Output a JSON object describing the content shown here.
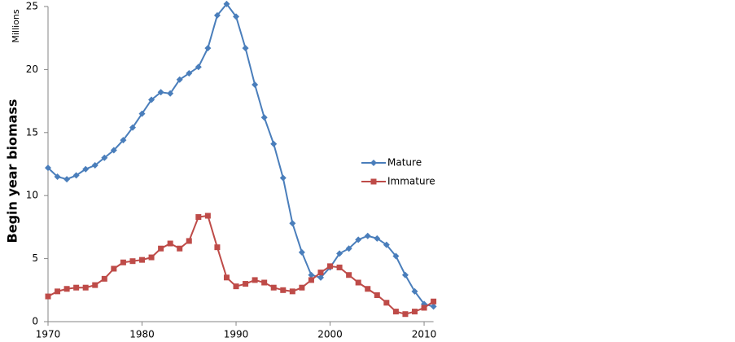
{
  "chart_data": {
    "type": "line",
    "y_label": "Begin year biomass",
    "y_unit": "Millions",
    "x": [
      1970,
      1971,
      1972,
      1973,
      1974,
      1975,
      1976,
      1977,
      1978,
      1979,
      1980,
      1981,
      1982,
      1983,
      1984,
      1985,
      1986,
      1987,
      1988,
      1989,
      1990,
      1991,
      1992,
      1993,
      1994,
      1995,
      1996,
      1997,
      1998,
      1999,
      2000,
      2001,
      2002,
      2003,
      2004,
      2005,
      2006,
      2007,
      2008,
      2009,
      2010,
      2011
    ],
    "series": [
      {
        "name": "Mature",
        "color": "#4a7ebb",
        "marker": "diamond",
        "values": [
          12.2,
          11.5,
          11.3,
          11.6,
          12.1,
          12.4,
          13.0,
          13.6,
          14.4,
          15.4,
          16.5,
          17.6,
          18.2,
          18.1,
          19.2,
          19.7,
          20.2,
          21.7,
          24.3,
          25.2,
          24.2,
          21.7,
          18.8,
          16.2,
          14.1,
          11.4,
          7.8,
          5.5,
          3.7,
          3.5,
          4.3,
          5.4,
          5.8,
          6.5,
          6.8,
          6.6,
          6.1,
          5.2,
          3.7,
          2.4,
          1.4,
          1.2
        ]
      },
      {
        "name": "Immature",
        "color": "#be4b48",
        "marker": "square",
        "values": [
          2.0,
          2.4,
          2.6,
          2.7,
          2.7,
          2.9,
          3.4,
          4.2,
          4.7,
          4.8,
          4.9,
          5.1,
          5.8,
          6.2,
          5.8,
          6.4,
          8.3,
          8.4,
          5.9,
          3.5,
          2.8,
          3.0,
          3.3,
          3.1,
          2.7,
          2.5,
          2.4,
          2.7,
          3.3,
          3.9,
          4.4,
          4.3,
          3.7,
          3.1,
          2.6,
          2.1,
          1.5,
          0.8,
          0.6,
          0.8,
          1.1,
          1.6
        ]
      }
    ],
    "xlim": [
      1970,
      2011
    ],
    "xticks": [
      1970,
      1980,
      1990,
      2000,
      2010
    ],
    "ylim": [
      0,
      25
    ],
    "yticks": [
      0,
      5,
      10,
      15,
      20,
      25
    ],
    "legend": "right"
  }
}
